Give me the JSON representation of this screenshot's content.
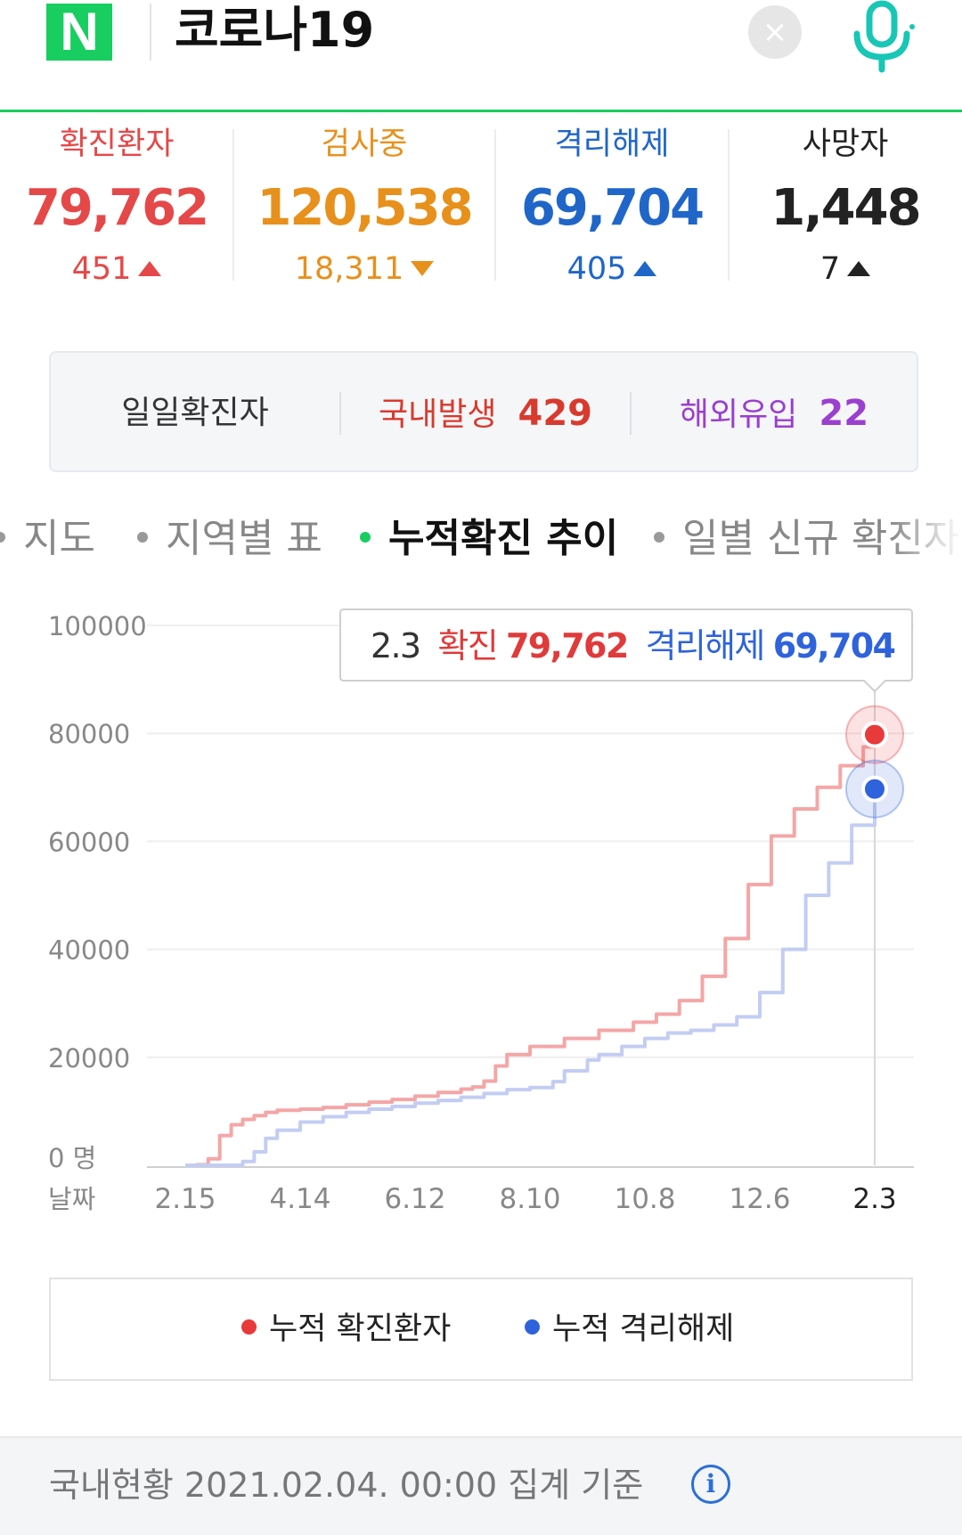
{
  "search": {
    "logo": "N",
    "query": "코로나19",
    "clear_glyph": "×"
  },
  "stats": [
    {
      "label": "확진환자",
      "value": "79,762",
      "change": "451",
      "direction": "up",
      "color": "#e54848"
    },
    {
      "label": "검사중",
      "value": "120,538",
      "change": "18,311",
      "direction": "down",
      "color": "#e8901c"
    },
    {
      "label": "격리해제",
      "value": "69,704",
      "change": "405",
      "direction": "up",
      "color": "#1f66c8"
    },
    {
      "label": "사망자",
      "value": "1,448",
      "change": "7",
      "direction": "up",
      "color": "#222222"
    }
  ],
  "daily": {
    "label": "일일확진자",
    "domestic_label": "국내발생",
    "domestic_value": "429",
    "overseas_label": "해외유입",
    "overseas_value": "22"
  },
  "tabs": [
    {
      "label": "지도",
      "active": false
    },
    {
      "label": "지역별 표",
      "active": false
    },
    {
      "label": "누적확진 추이",
      "active": true
    },
    {
      "label": "일별 신규 확진자",
      "active": false
    }
  ],
  "tooltip": {
    "date": "2.3",
    "confirmed_label": "확진",
    "confirmed_value": "79,762",
    "released_label": "격리해제",
    "released_value": "69,704"
  },
  "chart_data": {
    "type": "line",
    "y_unit": "0 명",
    "x_unit": "날짜",
    "y_ticks": [
      "100000",
      "80000",
      "60000",
      "40000",
      "20000"
    ],
    "ylim": [
      0,
      100000
    ],
    "x_ticks": [
      "2.15",
      "4.14",
      "6.12",
      "8.10",
      "10.8",
      "12.6",
      "2.3"
    ],
    "grid": true,
    "series": [
      {
        "name": "누적 확진환자",
        "color": "#f4a6a6",
        "marker_color": "#e83a3a",
        "points": [
          [
            0,
            0
          ],
          [
            1,
            100
          ],
          [
            2,
            1200
          ],
          [
            3,
            5500
          ],
          [
            4,
            7500
          ],
          [
            5,
            8500
          ],
          [
            6,
            9200
          ],
          [
            7,
            9800
          ],
          [
            8,
            10200
          ],
          [
            10,
            10400
          ],
          [
            12,
            10700
          ],
          [
            14,
            11200
          ],
          [
            16,
            11700
          ],
          [
            18,
            12200
          ],
          [
            20,
            12800
          ],
          [
            22,
            13500
          ],
          [
            24,
            14100
          ],
          [
            25,
            14500
          ],
          [
            26,
            15600
          ],
          [
            27,
            18400
          ],
          [
            28,
            20500
          ],
          [
            30,
            22000
          ],
          [
            33,
            23500
          ],
          [
            36,
            25000
          ],
          [
            39,
            26500
          ],
          [
            41,
            28000
          ],
          [
            43,
            30500
          ],
          [
            45,
            35000
          ],
          [
            47,
            42000
          ],
          [
            49,
            52000
          ],
          [
            51,
            61000
          ],
          [
            53,
            66000
          ],
          [
            55,
            70000
          ],
          [
            57,
            74000
          ],
          [
            59,
            77500
          ],
          [
            60,
            79762
          ]
        ]
      },
      {
        "name": "누적 격리해제",
        "color": "#c3cdf3",
        "marker_color": "#2f63dc",
        "points": [
          [
            0,
            0
          ],
          [
            4,
            0
          ],
          [
            5,
            700
          ],
          [
            6,
            2500
          ],
          [
            7,
            5000
          ],
          [
            8,
            6500
          ],
          [
            10,
            8000
          ],
          [
            12,
            9000
          ],
          [
            14,
            9800
          ],
          [
            16,
            10400
          ],
          [
            18,
            10900
          ],
          [
            20,
            11500
          ],
          [
            22,
            12000
          ],
          [
            24,
            12600
          ],
          [
            26,
            13300
          ],
          [
            28,
            14000
          ],
          [
            30,
            14400
          ],
          [
            32,
            15500
          ],
          [
            33,
            17500
          ],
          [
            35,
            19500
          ],
          [
            36,
            20500
          ],
          [
            38,
            22000
          ],
          [
            40,
            23500
          ],
          [
            42,
            24500
          ],
          [
            44,
            25000
          ],
          [
            46,
            26000
          ],
          [
            48,
            27500
          ],
          [
            50,
            32000
          ],
          [
            52,
            40000
          ],
          [
            54,
            50000
          ],
          [
            56,
            56000
          ],
          [
            58,
            63000
          ],
          [
            60,
            69704
          ]
        ]
      }
    ]
  },
  "legend": {
    "confirmed": "누적 확진환자",
    "released": "누적 격리해제"
  },
  "footer": {
    "text": "국내현황 2021.02.04. 00:00 집계 기준"
  }
}
